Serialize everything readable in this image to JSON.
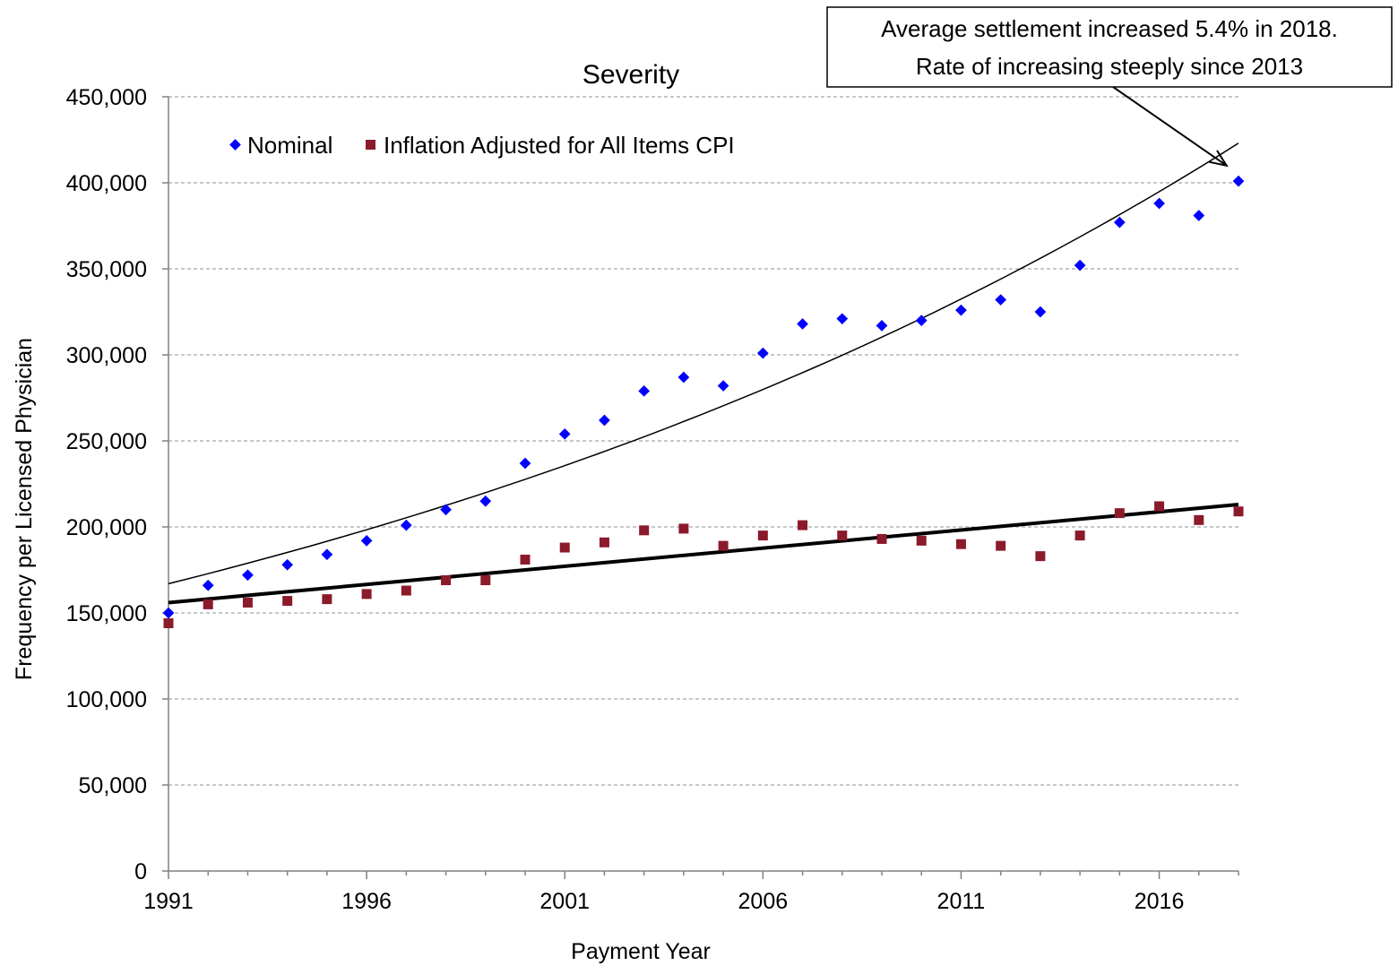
{
  "chart_data": {
    "type": "scatter",
    "title": "Severity",
    "xlabel": "Payment Year",
    "ylabel": "Frequency per Licensed Physician",
    "xlim": [
      1991,
      2018
    ],
    "ylim": [
      0,
      450000
    ],
    "x_ticks": [
      1991,
      1996,
      2001,
      2006,
      2011,
      2016
    ],
    "x_tick_labels": [
      "1991",
      "1996",
      "2001",
      "2006",
      "2011",
      "2016"
    ],
    "y_ticks": [
      0,
      50000,
      100000,
      150000,
      200000,
      250000,
      300000,
      350000,
      400000,
      450000
    ],
    "y_tick_labels": [
      "0",
      "50,000",
      "100,000",
      "150,000",
      "200,000",
      "250,000",
      "300,000",
      "350,000",
      "400,000",
      "450,000"
    ],
    "grid": "horizontal dashed",
    "legend_position": "top-left",
    "series": [
      {
        "name": "Nominal",
        "marker": "diamond",
        "color": "#0000ff",
        "x": [
          1991,
          1992,
          1993,
          1994,
          1995,
          1996,
          1997,
          1998,
          1999,
          2000,
          2001,
          2002,
          2003,
          2004,
          2005,
          2006,
          2007,
          2008,
          2009,
          2010,
          2011,
          2012,
          2013,
          2014,
          2015,
          2016,
          2017,
          2018
        ],
        "y": [
          150000,
          166000,
          172000,
          178000,
          184000,
          192000,
          201000,
          210000,
          215000,
          237000,
          254000,
          262000,
          279000,
          287000,
          282000,
          301000,
          318000,
          321000,
          317000,
          320000,
          326000,
          332000,
          325000,
          352000,
          377000,
          388000,
          381000,
          401000
        ]
      },
      {
        "name": "Inflation Adjusted for All Items CPI",
        "marker": "square",
        "color": "#8b1a2b",
        "x": [
          1991,
          1992,
          1993,
          1994,
          1995,
          1996,
          1997,
          1998,
          1999,
          2000,
          2001,
          2002,
          2003,
          2004,
          2005,
          2006,
          2007,
          2008,
          2009,
          2010,
          2011,
          2012,
          2013,
          2014,
          2015,
          2016,
          2017,
          2018
        ],
        "y": [
          144000,
          155000,
          156000,
          157000,
          158000,
          161000,
          163000,
          169000,
          169000,
          181000,
          188000,
          191000,
          198000,
          199000,
          189000,
          195000,
          201000,
          195000,
          193000,
          192000,
          190000,
          189000,
          183000,
          195000,
          208000,
          212000,
          204000,
          209000
        ]
      }
    ],
    "trendlines": [
      {
        "series": "Nominal",
        "kind": "exponential",
        "from": [
          1991,
          167000
        ],
        "to": [
          2018,
          423000
        ],
        "color": "#000000"
      },
      {
        "series": "Inflation Adjusted for All Items CPI",
        "kind": "linear",
        "from": [
          1991,
          156000
        ],
        "to": [
          2018,
          213000
        ],
        "color": "#000000"
      }
    ],
    "annotation": {
      "lines": [
        "Average settlement increased 5.4% in 2018.",
        "Rate of increasing steeply since 2013"
      ],
      "arrow_target": [
        2017.7,
        410000
      ]
    }
  }
}
